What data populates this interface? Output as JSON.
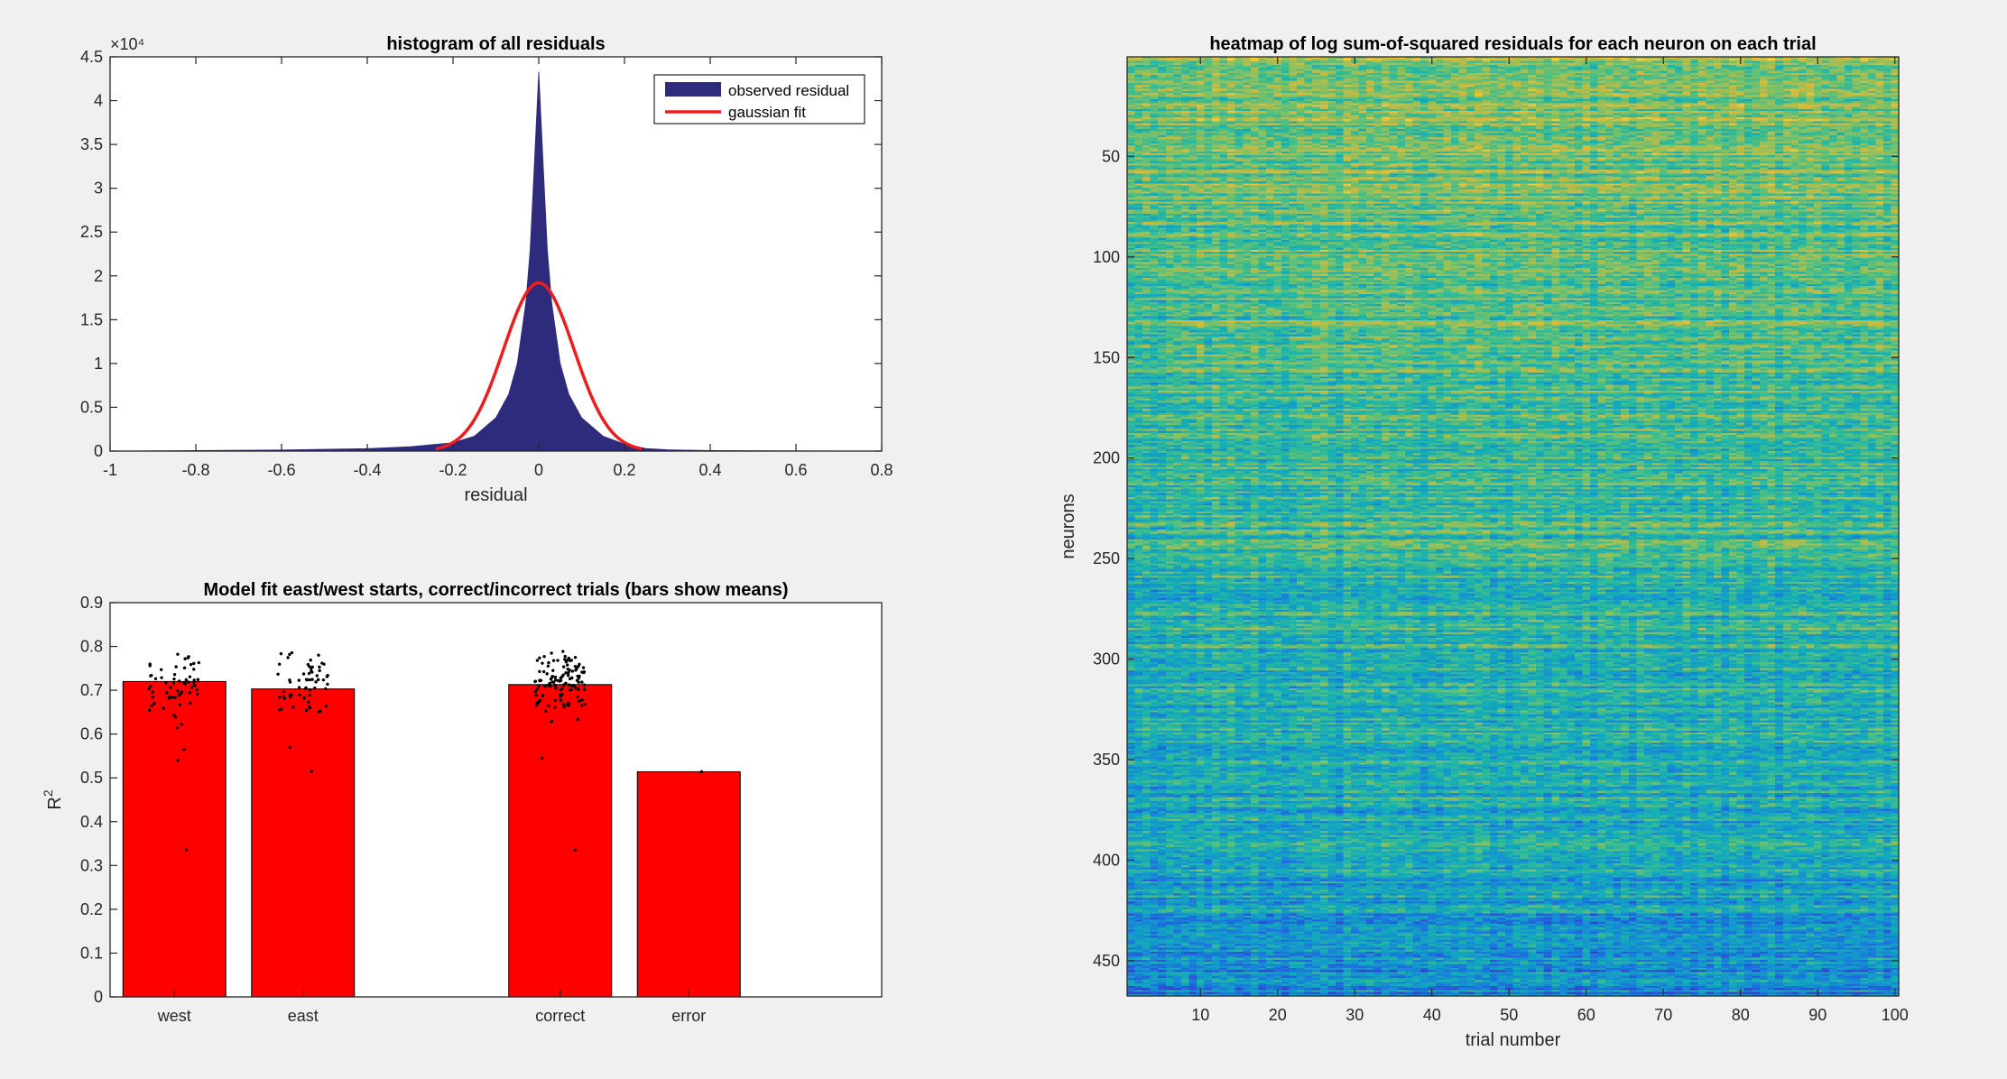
{
  "chart_data": [
    {
      "type": "area",
      "title": "histogram of all residuals",
      "xlabel": "residual",
      "ylabel": "",
      "xlim": [
        -1,
        0.8
      ],
      "ylim": [
        0,
        45000
      ],
      "x_ticks": [
        -1,
        -0.8,
        -0.6,
        -0.4,
        -0.2,
        0,
        0.2,
        0.4,
        0.6,
        0.8
      ],
      "x_tick_labels": [
        "-1",
        "-0.8",
        "-0.6",
        "-0.4",
        "-0.2",
        "0",
        "0.2",
        "0.4",
        "0.6",
        "0.8"
      ],
      "y_ticks": [
        0,
        5000,
        10000,
        15000,
        20000,
        25000,
        30000,
        35000,
        40000,
        45000
      ],
      "y_tick_labels": [
        "0",
        "0.5",
        "1",
        "1.5",
        "2",
        "2.5",
        "3",
        "3.5",
        "4",
        "4.5"
      ],
      "y_exponent_label": "×10⁴",
      "legend_position": "top-right",
      "series": [
        {
          "name": "observed residual",
          "kind": "filled-histogram",
          "color": "#2e2a7c",
          "peak_x": 0,
          "peak_count": 43300,
          "points": [
            [
              -1,
              0
            ],
            [
              -0.6,
              120
            ],
            [
              -0.4,
              280
            ],
            [
              -0.3,
              500
            ],
            [
              -0.2,
              950
            ],
            [
              -0.15,
              1700
            ],
            [
              -0.1,
              3800
            ],
            [
              -0.07,
              6500
            ],
            [
              -0.05,
              10000
            ],
            [
              -0.03,
              17000
            ],
            [
              -0.02,
              23000
            ],
            [
              -0.01,
              33000
            ],
            [
              0,
              43300
            ],
            [
              0.01,
              33000
            ],
            [
              0.02,
              23000
            ],
            [
              0.03,
              17000
            ],
            [
              0.05,
              10000
            ],
            [
              0.07,
              6500
            ],
            [
              0.1,
              3800
            ],
            [
              0.15,
              1700
            ],
            [
              0.2,
              800
            ],
            [
              0.25,
              300
            ],
            [
              0.3,
              150
            ],
            [
              0.4,
              60
            ],
            [
              0.6,
              20
            ],
            [
              0.8,
              0
            ]
          ]
        },
        {
          "name": "gaussian fit",
          "kind": "line",
          "color": "#ee1c1c",
          "amplitude": 19200,
          "mean": 0,
          "sigma": 0.082,
          "x_range": [
            -0.24,
            0.24
          ]
        }
      ]
    },
    {
      "type": "bar",
      "title": "Model fit east/west starts, correct/incorrect trials (bars show means)",
      "xlabel": "",
      "ylabel": "R",
      "ylabel_superscript": "2",
      "ylim": [
        0,
        0.9
      ],
      "y_ticks": [
        0,
        0.1,
        0.2,
        0.3,
        0.4,
        0.5,
        0.6,
        0.7,
        0.8,
        0.9
      ],
      "y_tick_labels": [
        "0",
        "0.1",
        "0.2",
        "0.3",
        "0.4",
        "0.5",
        "0.6",
        "0.7",
        "0.8",
        "0.9"
      ],
      "xlim": [
        0.5,
        6.5
      ],
      "categories": [
        {
          "label": "west",
          "x": 1
        },
        {
          "label": "east",
          "x": 2
        },
        {
          "label": "correct",
          "x": 4
        },
        {
          "label": "error",
          "x": 5
        }
      ],
      "values": [
        0.72,
        0.703,
        0.713,
        0.514
      ],
      "bar_color": "#ff0000",
      "dot_color": "#000000",
      "dot_clouds": [
        {
          "category": "west",
          "n": 60,
          "min": 0.55,
          "max": 0.79,
          "outliers": [
            0.335,
            0.54,
            0.565
          ]
        },
        {
          "category": "east",
          "n": 60,
          "min": 0.6,
          "max": 0.81,
          "outliers": [
            0.515,
            0.57
          ]
        },
        {
          "category": "correct",
          "n": 120,
          "min": 0.57,
          "max": 0.81,
          "outliers": [
            0.335,
            0.545
          ]
        },
        {
          "category": "error",
          "n": 1,
          "min": 0.514,
          "max": 0.514,
          "outliers": []
        }
      ]
    },
    {
      "type": "heatmap",
      "title": "heatmap of log sum-of-squared residuals for each neuron on each trial",
      "xlabel": "trial number",
      "ylabel": "neurons",
      "xlim": [
        0.5,
        100.5
      ],
      "ylim": [
        0.5,
        467.5
      ],
      "y_direction": "reverse",
      "x_ticks": [
        10,
        20,
        30,
        40,
        50,
        60,
        70,
        80,
        90,
        100
      ],
      "x_tick_labels": [
        "10",
        "20",
        "30",
        "40",
        "50",
        "60",
        "70",
        "80",
        "90",
        "100"
      ],
      "y_ticks": [
        50,
        100,
        150,
        200,
        250,
        300,
        350,
        400,
        450
      ],
      "y_tick_labels": [
        "50",
        "100",
        "150",
        "200",
        "250",
        "300",
        "350",
        "400",
        "450"
      ],
      "n_trials": 100,
      "n_neurons": 467,
      "colormap": [
        "#3e3cd1",
        "#1e6ae0",
        "#1592d0",
        "#14aeb7",
        "#3fbe8c",
        "#92c05c",
        "#d6b83b",
        "#f7d43a"
      ],
      "value_trend": "higher values for low neuron indices (top, yellow-green), lower values for high neuron indices (bottom, blue)"
    }
  ]
}
